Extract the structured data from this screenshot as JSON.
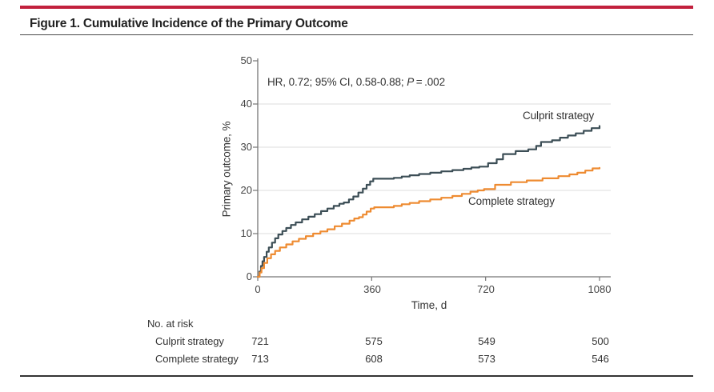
{
  "header": {
    "title": "Figure 1. Cumulative Incidence of the Primary Outcome",
    "accent_color": "#C2203D"
  },
  "chart_data": {
    "type": "line",
    "subtype": "kaplan-meier-cumulative-incidence-step",
    "title": "Figure 1. Cumulative Incidence of the Primary Outcome",
    "xlabel": "Time, d",
    "ylabel": "Primary outcome, %",
    "xlim": [
      0,
      1080
    ],
    "ylim": [
      0,
      50
    ],
    "x_ticks": [
      0,
      360,
      720,
      1080
    ],
    "y_ticks": [
      0,
      10,
      20,
      30,
      40,
      50
    ],
    "x_tick_labels": [
      "0",
      "360",
      "720",
      "1080"
    ],
    "y_tick_labels": [
      "0",
      "10",
      "20",
      "30",
      "40",
      "50"
    ],
    "grid_lines_y": [
      10,
      20,
      30,
      40
    ],
    "grid": "horizontal-light",
    "legend_position": "inline-labels-near-curves",
    "annotation": {
      "prefix": "HR, 0.72; 95% CI, 0.58-0.88; ",
      "p_symbol": "P",
      "p_rest": " = .002"
    },
    "axis_color": "#767676",
    "grid_color": "#DCDCDC",
    "series": [
      {
        "name": "Culprit strategy",
        "color": "#3C4E56",
        "points": [
          [
            0,
            0
          ],
          [
            5,
            1.2
          ],
          [
            10,
            2.5
          ],
          [
            15,
            3.6
          ],
          [
            20,
            4.6
          ],
          [
            28,
            5.8
          ],
          [
            35,
            6.8
          ],
          [
            45,
            7.9
          ],
          [
            55,
            8.9
          ],
          [
            65,
            9.8
          ],
          [
            78,
            10.6
          ],
          [
            90,
            11.3
          ],
          [
            105,
            12.0
          ],
          [
            120,
            12.6
          ],
          [
            140,
            13.3
          ],
          [
            160,
            13.9
          ],
          [
            180,
            14.5
          ],
          [
            200,
            15.2
          ],
          [
            220,
            15.8
          ],
          [
            240,
            16.4
          ],
          [
            258,
            16.9
          ],
          [
            272,
            17.2
          ],
          [
            288,
            17.9
          ],
          [
            302,
            18.6
          ],
          [
            318,
            19.5
          ],
          [
            332,
            20.4
          ],
          [
            344,
            21.3
          ],
          [
            355,
            22.1
          ],
          [
            365,
            22.7
          ],
          [
            430,
            22.9
          ],
          [
            455,
            23.2
          ],
          [
            480,
            23.5
          ],
          [
            510,
            23.8
          ],
          [
            545,
            24.1
          ],
          [
            580,
            24.4
          ],
          [
            615,
            24.7
          ],
          [
            650,
            25.0
          ],
          [
            675,
            25.3
          ],
          [
            700,
            25.5
          ],
          [
            728,
            26.3
          ],
          [
            755,
            27.2
          ],
          [
            775,
            28.4
          ],
          [
            815,
            29.1
          ],
          [
            855,
            29.5
          ],
          [
            880,
            30.3
          ],
          [
            895,
            31.2
          ],
          [
            930,
            31.6
          ],
          [
            955,
            32.2
          ],
          [
            980,
            32.7
          ],
          [
            1005,
            33.2
          ],
          [
            1030,
            33.8
          ],
          [
            1055,
            34.4
          ],
          [
            1080,
            34.9
          ]
        ]
      },
      {
        "name": "Complete strategy",
        "color": "#EE8B31",
        "points": [
          [
            0,
            0
          ],
          [
            6,
            1.0
          ],
          [
            12,
            2.0
          ],
          [
            20,
            3.2
          ],
          [
            30,
            4.3
          ],
          [
            42,
            5.2
          ],
          [
            55,
            6.0
          ],
          [
            70,
            6.8
          ],
          [
            90,
            7.5
          ],
          [
            110,
            8.2
          ],
          [
            130,
            8.8
          ],
          [
            152,
            9.4
          ],
          [
            175,
            10.0
          ],
          [
            198,
            10.5
          ],
          [
            220,
            11.0
          ],
          [
            243,
            11.7
          ],
          [
            266,
            12.3
          ],
          [
            290,
            13.0
          ],
          [
            305,
            13.5
          ],
          [
            320,
            13.8
          ],
          [
            332,
            14.4
          ],
          [
            344,
            15.1
          ],
          [
            357,
            15.8
          ],
          [
            368,
            16.1
          ],
          [
            430,
            16.4
          ],
          [
            455,
            16.8
          ],
          [
            480,
            17.1
          ],
          [
            510,
            17.5
          ],
          [
            545,
            17.9
          ],
          [
            580,
            18.3
          ],
          [
            615,
            18.7
          ],
          [
            645,
            19.2
          ],
          [
            672,
            19.7
          ],
          [
            695,
            20.0
          ],
          [
            715,
            20.3
          ],
          [
            750,
            21.3
          ],
          [
            800,
            21.9
          ],
          [
            850,
            22.3
          ],
          [
            900,
            22.8
          ],
          [
            950,
            23.3
          ],
          [
            985,
            23.7
          ],
          [
            1010,
            24.1
          ],
          [
            1035,
            24.6
          ],
          [
            1058,
            25.1
          ],
          [
            1080,
            25.2
          ]
        ]
      }
    ]
  },
  "at_risk": {
    "header": "No. at risk",
    "rows": [
      {
        "label": "Culprit strategy",
        "values": [
          "721",
          "575",
          "549",
          "500"
        ]
      },
      {
        "label": "Complete strategy",
        "values": [
          "713",
          "608",
          "573",
          "546"
        ]
      }
    ]
  }
}
